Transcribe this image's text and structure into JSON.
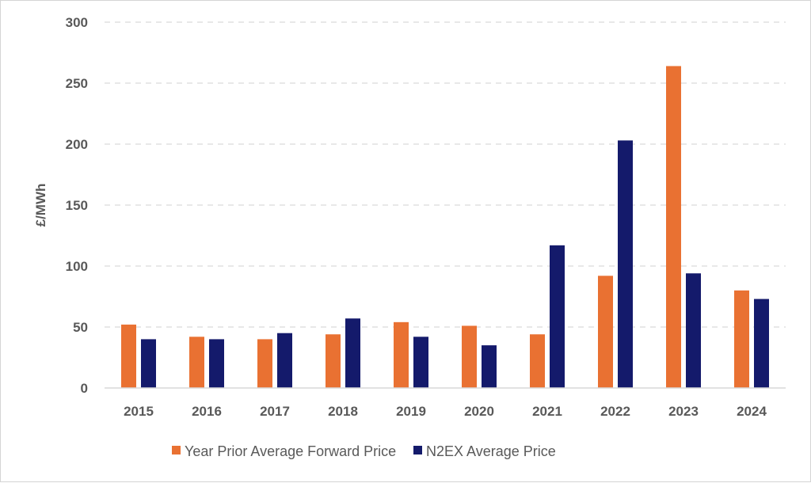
{
  "chart_data": {
    "type": "bar",
    "title": "",
    "xlabel": "",
    "ylabel": "£/MWh",
    "ylim": [
      0,
      300
    ],
    "yticks": [
      0,
      50,
      100,
      150,
      200,
      250,
      300
    ],
    "grid": true,
    "legend_position": "bottom",
    "categories": [
      "2015",
      "2016",
      "2017",
      "2018",
      "2019",
      "2020",
      "2021",
      "2022",
      "2023",
      "2024"
    ],
    "series": [
      {
        "name": "Year Prior Average Forward Price",
        "color": "#E97132",
        "values": [
          52,
          42,
          40,
          44,
          54,
          51,
          44,
          92,
          264,
          80
        ]
      },
      {
        "name": "N2EX Average Price",
        "color": "#141A6B",
        "values": [
          40,
          40,
          45,
          57,
          42,
          35,
          117,
          203,
          94,
          73
        ]
      }
    ]
  }
}
